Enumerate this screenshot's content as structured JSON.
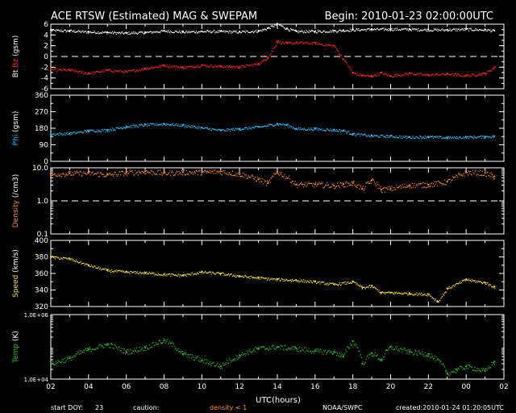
{
  "header": {
    "title": "ACE RTSW (Estimated) MAG & SWEPAM",
    "begin": "Begin: 2010-01-23 02:00:00UTC"
  },
  "footer": {
    "start_doy_label": "start DOY:",
    "start_doy_value": "23",
    "caution_label": "caution:",
    "caution_text": "density < 1",
    "credit": "NOAA/SWPC",
    "created": "created:2010-01-24 01:20:05UTC"
  },
  "colors": {
    "bt": "#ffffff",
    "bz": "#ff2020",
    "phi": "#20c0ff",
    "density": "#ff8c20",
    "speed": "#f0e020",
    "temp": "#20c020",
    "frame": "#ffffff",
    "background": "#000000"
  },
  "chart_data": [
    {
      "type": "scatter",
      "panel": "mag",
      "ylabel": [
        "Bt",
        "Bz",
        "(gsm)"
      ],
      "ylim": [
        -6,
        6
      ],
      "yticks": [
        "6",
        "4",
        "2",
        "0",
        "-2",
        "-4",
        "-6"
      ],
      "dashed_ref": 0,
      "series": [
        {
          "name": "Bt",
          "color": "#ffffff",
          "x": [
            2,
            3,
            4,
            5,
            6,
            7,
            8,
            9,
            10,
            11,
            12,
            13,
            13.5,
            14,
            14.5,
            15,
            16,
            17,
            17.5,
            18,
            19,
            20,
            21,
            22,
            23,
            24,
            25,
            25.5
          ],
          "values": [
            4.9,
            4.8,
            4.6,
            4.5,
            4.4,
            4.5,
            4.8,
            4.6,
            4.7,
            4.7,
            4.6,
            4.8,
            5.3,
            6.1,
            5.2,
            4.7,
            4.7,
            4.8,
            4.9,
            5.0,
            5.1,
            5.1,
            5.1,
            5.0,
            5.0,
            5.1,
            5.0,
            4.8
          ]
        },
        {
          "name": "Bz",
          "color": "#ff2020",
          "x": [
            2,
            3,
            4,
            5,
            6,
            7,
            8,
            9,
            10,
            11,
            12,
            13,
            13.5,
            14,
            14.5,
            15,
            16,
            17,
            17.5,
            18,
            18.5,
            19,
            19.5,
            20,
            21,
            22,
            23,
            24,
            25,
            25.5
          ],
          "values": [
            -2.4,
            -2.5,
            -3.1,
            -2.5,
            -2.8,
            -2.2,
            -1.6,
            -2.0,
            -1.6,
            -1.8,
            -1.9,
            -1.3,
            -0.1,
            2.8,
            2.5,
            2.6,
            2.5,
            2.0,
            -0.5,
            -3.0,
            -3.5,
            -3.6,
            -3.0,
            -3.6,
            -3.1,
            -3.4,
            -3.2,
            -3.5,
            -3.1,
            -2.0
          ]
        }
      ]
    },
    {
      "type": "scatter",
      "panel": "phi",
      "ylabel": [
        "Phi",
        "(gsm)"
      ],
      "ylim": [
        0,
        360
      ],
      "yticks": [
        "360",
        "270",
        "180",
        "90",
        "0"
      ],
      "series": [
        {
          "name": "Phi",
          "color": "#20c0ff",
          "x": [
            2,
            3,
            4,
            5,
            6,
            7,
            8,
            9,
            10,
            11,
            12,
            13,
            14,
            14.5,
            15,
            16,
            17,
            17.5,
            18,
            19,
            20,
            21,
            22,
            23,
            24,
            25,
            25.5
          ],
          "values": [
            150,
            152,
            168,
            172,
            190,
            200,
            205,
            198,
            183,
            170,
            178,
            188,
            205,
            200,
            178,
            178,
            172,
            168,
            150,
            140,
            138,
            133,
            135,
            130,
            133,
            135,
            138
          ]
        }
      ]
    },
    {
      "type": "scatter",
      "panel": "density",
      "ylabel": [
        "Density",
        "(/cm3)"
      ],
      "ylim": [
        0.1,
        10
      ],
      "scale": "log",
      "yticks": [
        "10.0",
        "1.0",
        "0.1"
      ],
      "dashed_ref": 1.0,
      "series": [
        {
          "name": "Density",
          "color": "#ff8c20",
          "x": [
            2,
            3,
            4,
            5,
            6,
            7,
            8,
            9,
            10,
            11,
            12,
            13,
            13.5,
            14,
            15,
            16,
            17,
            17.5,
            18,
            18.5,
            19,
            19.5,
            20,
            21,
            22,
            23,
            24,
            25,
            25.5
          ],
          "values": [
            6.5,
            6.8,
            7.0,
            6.2,
            7.2,
            7.8,
            7.0,
            7.4,
            7.4,
            7.8,
            6.5,
            4.5,
            3.4,
            7.5,
            3.1,
            3.2,
            2.9,
            3.2,
            3.5,
            2.3,
            4.2,
            2.2,
            2.4,
            3.0,
            3.1,
            3.8,
            7.3,
            7.0,
            5.5
          ]
        }
      ]
    },
    {
      "type": "scatter",
      "panel": "speed",
      "ylabel": [
        "Speed",
        "(km/s)"
      ],
      "ylim": [
        320,
        400
      ],
      "yticks": [
        "400",
        "380",
        "360",
        "340",
        "320"
      ],
      "series": [
        {
          "name": "Speed",
          "color": "#f0e020",
          "x": [
            2,
            3,
            4,
            5,
            6,
            7,
            8,
            9,
            10,
            11,
            12,
            13,
            14,
            15,
            16,
            17,
            18,
            18.5,
            19,
            19.5,
            20,
            21,
            22,
            22.5,
            23,
            24,
            25,
            25.5
          ],
          "values": [
            380,
            378,
            370,
            364,
            362,
            361,
            359,
            358,
            362,
            360,
            357,
            355,
            353,
            352,
            350,
            347,
            350,
            343,
            345,
            337,
            337,
            336,
            335,
            326,
            342,
            353,
            349,
            344
          ]
        }
      ]
    },
    {
      "type": "scatter",
      "panel": "temp",
      "ylabel": [
        "Temp",
        "(K)"
      ],
      "ylim": [
        10000,
        1000000
      ],
      "scale": "log",
      "yticks": [
        "1.0E+06",
        "1.0E+04"
      ],
      "series": [
        {
          "name": "Temp",
          "color": "#20c020",
          "x": [
            2,
            3,
            4,
            5,
            6,
            7,
            8,
            9,
            10,
            11,
            12,
            13,
            14,
            15,
            16,
            17,
            17.5,
            18,
            18.5,
            19,
            19.5,
            20,
            21,
            22,
            23,
            23.5,
            24,
            25,
            25.5
          ],
          "values": [
            30000,
            45000,
            85000,
            120000,
            70000,
            95000,
            160000,
            60000,
            38000,
            25000,
            55000,
            90000,
            100000,
            90000,
            75000,
            70000,
            50000,
            150000,
            30000,
            65000,
            40000,
            100000,
            70000,
            60000,
            15000,
            20000,
            25000,
            18000,
            35000
          ]
        }
      ]
    }
  ],
  "xaxis": {
    "label": "UTC(hours)",
    "ticks": [
      "02",
      "04",
      "06",
      "08",
      "10",
      "12",
      "14",
      "16",
      "18",
      "20",
      "22",
      "00",
      "02"
    ],
    "range": [
      2,
      26
    ]
  }
}
